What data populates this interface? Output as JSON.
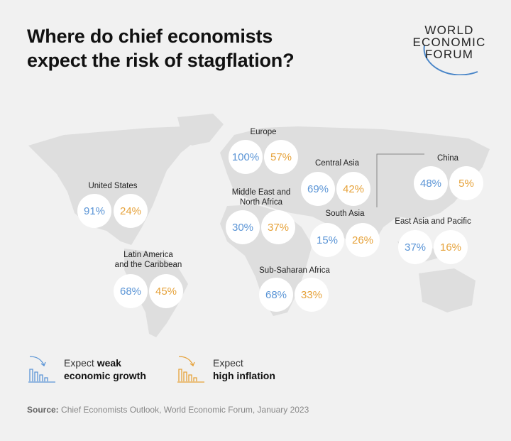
{
  "title_lines": [
    "Where do chief economists",
    "expect the risk of stagflation?"
  ],
  "logo": {
    "lines": [
      "WORLD",
      "ECONOMIC",
      "FORUM"
    ]
  },
  "colors": {
    "weak_growth": "#5b95d6",
    "high_inflation": "#e6a23a",
    "background": "#f1f1f1",
    "land": "#dedede"
  },
  "regions": [
    {
      "name": "United States",
      "weak_growth": "91%",
      "high_inflation": "24%"
    },
    {
      "name": "Europe",
      "weak_growth": "100%",
      "high_inflation": "57%"
    },
    {
      "name": "Central Asia",
      "weak_growth": "69%",
      "high_inflation": "42%"
    },
    {
      "name": "China",
      "weak_growth": "48%",
      "high_inflation": "5%"
    },
    {
      "name": "Middle East and North Africa",
      "name_lines": [
        "Middle East and",
        "North Africa"
      ],
      "weak_growth": "30%",
      "high_inflation": "37%"
    },
    {
      "name": "South Asia",
      "weak_growth": "15%",
      "high_inflation": "26%"
    },
    {
      "name": "East Asia and Pacific",
      "weak_growth": "37%",
      "high_inflation": "16%"
    },
    {
      "name": "Latin America and the Caribbean",
      "name_lines": [
        "Latin America",
        "and the Caribbean"
      ],
      "weak_growth": "68%",
      "high_inflation": "45%"
    },
    {
      "name": "Sub-Saharan Africa",
      "weak_growth": "68%",
      "high_inflation": "33%"
    }
  ],
  "legend": {
    "weak_growth": {
      "icon": "declining-bar-chart-icon",
      "line1_plain": "Expect ",
      "line1_bold": "weak",
      "line2_bold": "economic growth"
    },
    "high_inflation": {
      "icon": "declining-bar-chart-icon",
      "line1_plain": "Expect",
      "line2_bold": "high inflation"
    }
  },
  "source": {
    "label": "Source:",
    "text": " Chief Economists Outlook, World Economic Forum, January 2023"
  }
}
